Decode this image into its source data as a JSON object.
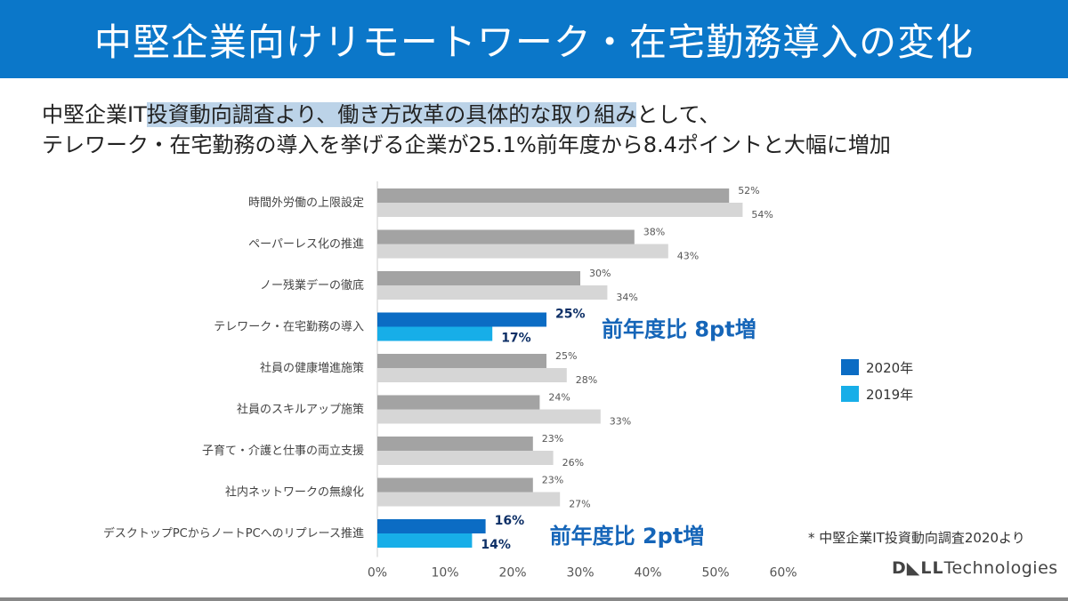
{
  "header": {
    "title": "中堅企業向けリモートワーク・在宅勤務導入の変化"
  },
  "subtitle": {
    "line1_pre": "中堅企業IT",
    "line1_highlight": "投資動向調査より、働き方改革の具体的な取り組み",
    "line1_post": "として、",
    "line2": "テレワーク・在宅勤務の導入を挙げる企業が25.1%前年度から8.4ポイントと大幅に増加"
  },
  "colors": {
    "title_bar": "#0b77c9",
    "series_2020_highlight": "#0b6cc4",
    "series_2019_highlight": "#17aee8",
    "series_2020_normal": "#a3a3a3",
    "series_2019_normal": "#d6d6d6",
    "callout_text": "#1565b8",
    "highlight_label_text": "#0d2f66"
  },
  "chart_data": {
    "type": "bar",
    "orientation": "horizontal",
    "categories": [
      "時間外労働の上限設定",
      "ペーパーレス化の推進",
      "ノー残業デーの徹底",
      "テレワーク・在宅勤務の導入",
      "社員の健康増進施策",
      "社員のスキルアップ施策",
      "子育て・介護と仕事の両立支援",
      "社内ネットワークの無線化",
      "デスクトップPCからノートPCへのリプレース推進"
    ],
    "series": [
      {
        "name": "2020年",
        "values": [
          52,
          38,
          30,
          25,
          25,
          24,
          23,
          23,
          16
        ]
      },
      {
        "name": "2019年",
        "values": [
          54,
          43,
          34,
          17,
          28,
          33,
          26,
          27,
          14
        ]
      }
    ],
    "highlight_indices": [
      3,
      8
    ],
    "xlim": [
      0,
      60
    ],
    "xticks": [
      "0%",
      "10%",
      "20%",
      "30%",
      "40%",
      "50%",
      "60%"
    ],
    "value_suffix": "%",
    "legend_position": "right",
    "annotations": [
      {
        "category_index": 3,
        "text": "前年度比 8pt増"
      },
      {
        "category_index": 8,
        "text": "前年度比 2pt増"
      }
    ],
    "grid": false
  },
  "legend": {
    "item_2020": "2020年",
    "item_2019": "2019年"
  },
  "footer": {
    "source_note": "* 中堅企業IT投資動向調査2020より",
    "brand_dell": "D◣LL",
    "brand_tech": "Technologies"
  }
}
